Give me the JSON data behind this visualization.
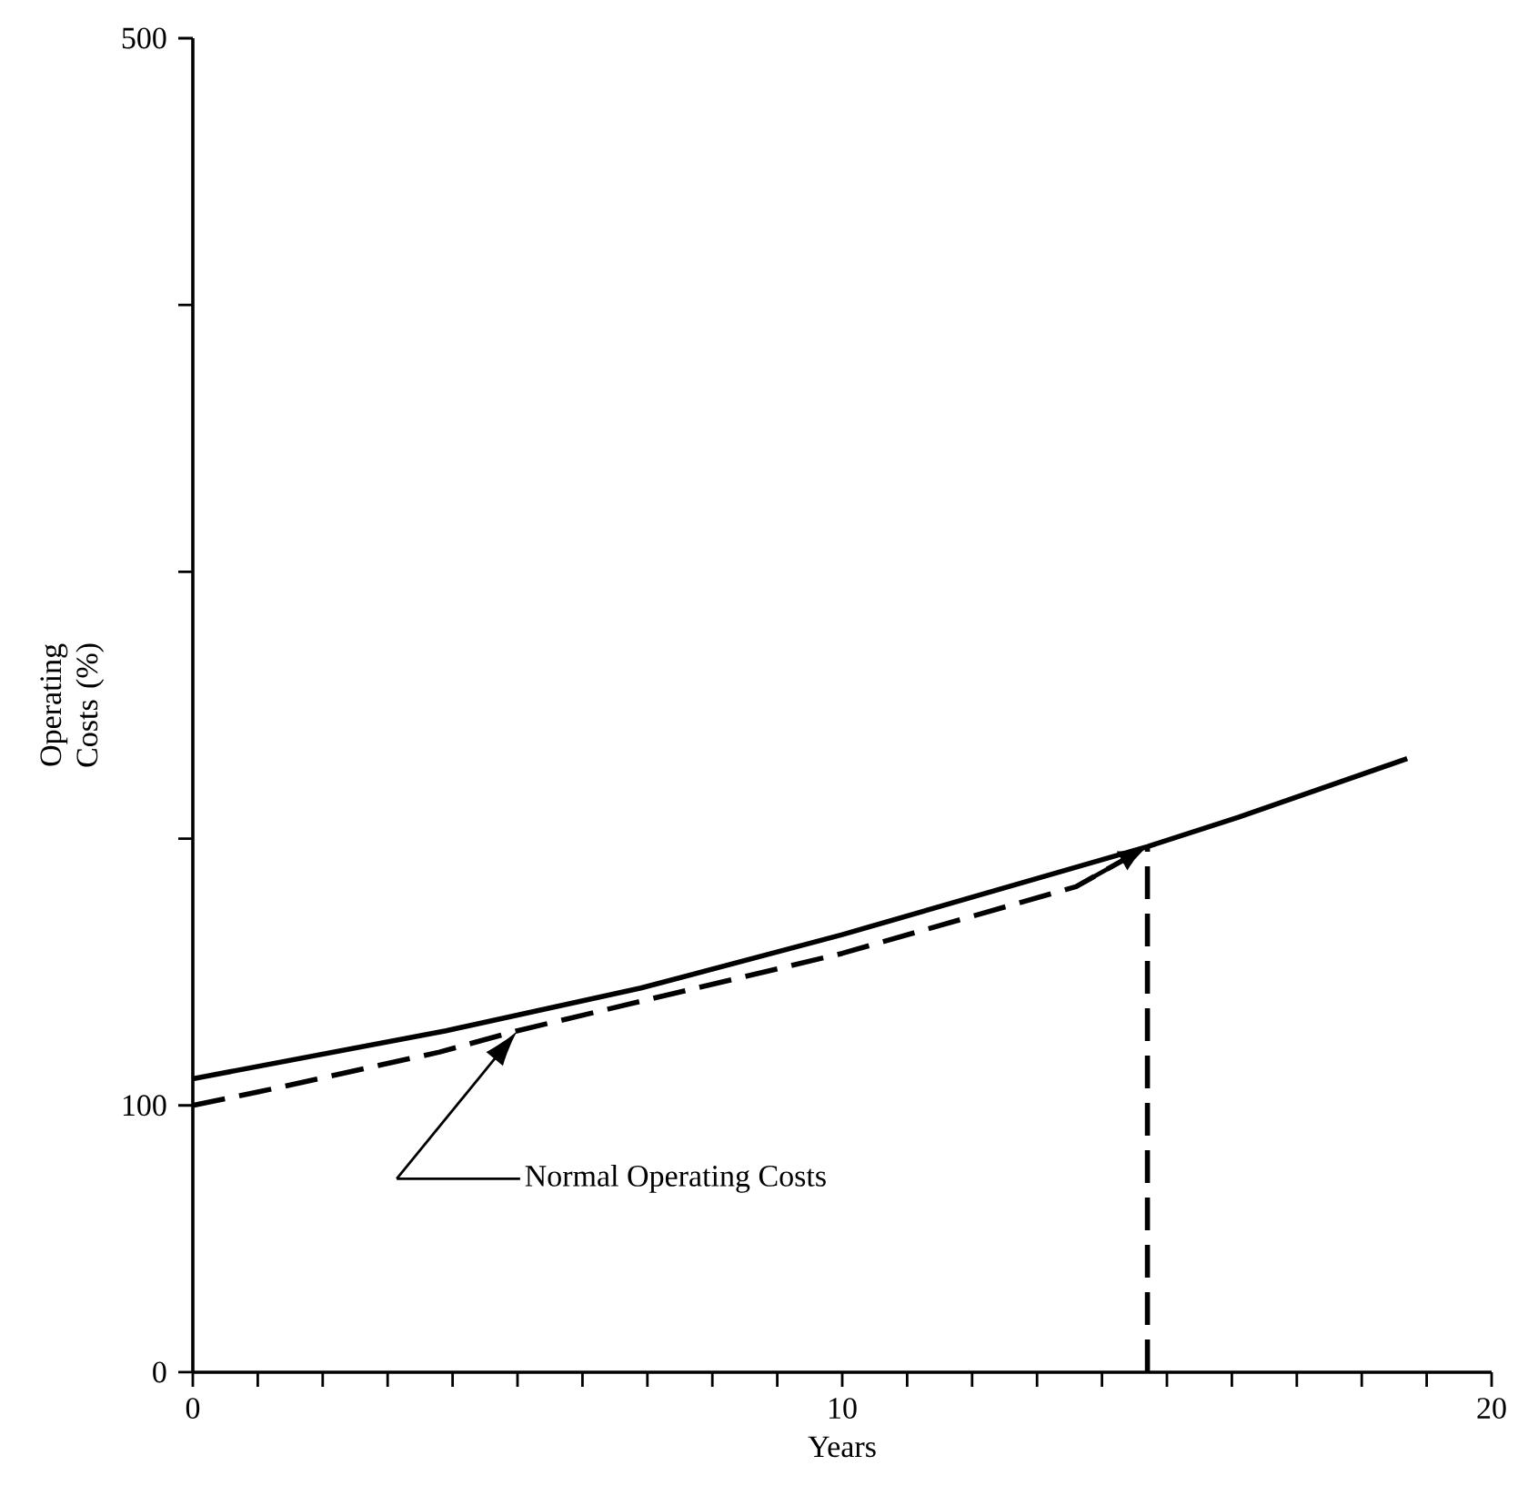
{
  "chart_data": {
    "type": "line",
    "xlabel": "Years",
    "ylabel": "Operating Costs (%)",
    "xlim": [
      0,
      20
    ],
    "ylim": [
      0,
      500
    ],
    "xticks": [
      0,
      {
        "value": 1,
        "label": null
      },
      {
        "value": 2,
        "label": null
      },
      {
        "value": 3,
        "label": null
      },
      {
        "value": 4,
        "label": null
      },
      {
        "value": 5,
        "label": null
      },
      {
        "value": 6,
        "label": null
      },
      {
        "value": 7,
        "label": null
      },
      {
        "value": 8,
        "label": null
      },
      {
        "value": 9,
        "label": null
      },
      10,
      {
        "value": 11,
        "label": null
      },
      {
        "value": 12,
        "label": null
      },
      {
        "value": 13,
        "label": null
      },
      {
        "value": 14,
        "label": null
      },
      {
        "value": 15,
        "label": null
      },
      {
        "value": 16,
        "label": null
      },
      {
        "value": 17,
        "label": null
      },
      {
        "value": 18,
        "label": null
      },
      {
        "value": 19,
        "label": null
      },
      20
    ],
    "yticks": [
      0,
      100,
      {
        "value": 200,
        "label": null
      },
      {
        "value": 300,
        "label": null
      },
      {
        "value": 400,
        "label": null
      },
      500
    ],
    "marker": "none",
    "series": [
      {
        "color": "#000000",
        "line_style": "solid",
        "x": [
          0,
          3.9,
          6.9,
          10,
          14.7,
          16.1,
          18.7
        ],
        "values": [
          110,
          128,
          144,
          164,
          197,
          208,
          230
        ]
      },
      {
        "color": "#000000",
        "line_style": "dashed",
        "x": [
          0,
          1,
          3.8,
          5,
          10,
          13.6,
          14.7
        ],
        "values": [
          100,
          105,
          120,
          128,
          157,
          182,
          197
        ]
      },
      {
        "color": "#000000",
        "line_style": "dashed",
        "x": [
          14.7,
          14.7
        ],
        "values": [
          0,
          197
        ]
      }
    ],
    "annotations": [
      "Normal Operating Costs"
    ]
  }
}
